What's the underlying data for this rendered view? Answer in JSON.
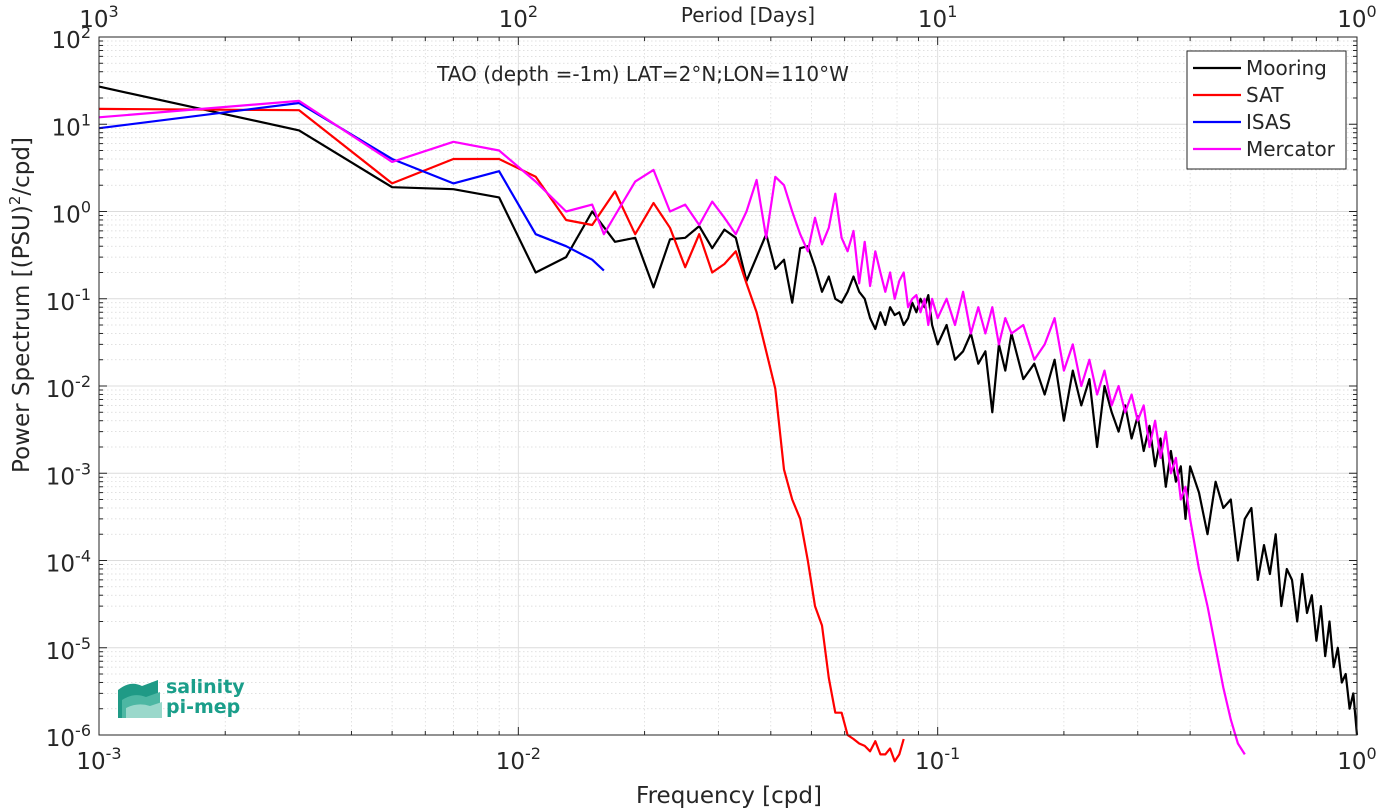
{
  "chart_data": {
    "type": "line",
    "title": "TAO (depth =-1m) LAT=2°N;LON=110°W",
    "xlabel": "Frequency [cpd]",
    "ylabel": "Power Spectrum [(PSU)",
    "ylabel_sup": "2",
    "ylabel_tail": "/cpd]",
    "x2label": "Period [Days]",
    "xscale": "log",
    "yscale": "log",
    "xlim": [
      0.001,
      1
    ],
    "ylim": [
      1e-06,
      100
    ],
    "grid": true,
    "legend_position": "top-right",
    "x_ticks": [
      {
        "base": "10",
        "exp": "-3",
        "value": 0.001
      },
      {
        "base": "10",
        "exp": "-2",
        "value": 0.01
      },
      {
        "base": "10",
        "exp": "-1",
        "value": 0.1
      },
      {
        "base": "10",
        "exp": "0",
        "value": 1
      }
    ],
    "x2_ticks": [
      {
        "base": "10",
        "exp": "3",
        "value": 0.001
      },
      {
        "base": "10",
        "exp": "2",
        "value": 0.01
      },
      {
        "base": "10",
        "exp": "1",
        "value": 0.1
      },
      {
        "base": "10",
        "exp": "0",
        "value": 1
      }
    ],
    "y_ticks": [
      {
        "base": "10",
        "exp": "2",
        "value": 100
      },
      {
        "base": "10",
        "exp": "1",
        "value": 10
      },
      {
        "base": "10",
        "exp": "0",
        "value": 1
      },
      {
        "base": "10",
        "exp": "-1",
        "value": 0.1
      },
      {
        "base": "10",
        "exp": "-2",
        "value": 0.01
      },
      {
        "base": "10",
        "exp": "-3",
        "value": 0.001
      },
      {
        "base": "10",
        "exp": "-4",
        "value": 0.0001
      },
      {
        "base": "10",
        "exp": "-5",
        "value": 1e-05
      },
      {
        "base": "10",
        "exp": "-6",
        "value": 1e-06
      }
    ],
    "series": [
      {
        "name": "Mooring",
        "color": "#000000",
        "x": [
          0.001,
          0.003,
          0.005,
          0.007,
          0.009,
          0.011,
          0.013,
          0.015,
          0.017,
          0.019,
          0.021,
          0.023,
          0.025,
          0.027,
          0.029,
          0.031,
          0.033,
          0.035,
          0.037,
          0.039,
          0.041,
          0.043,
          0.045,
          0.047,
          0.049,
          0.051,
          0.053,
          0.055,
          0.057,
          0.059,
          0.061,
          0.063,
          0.065,
          0.067,
          0.069,
          0.071,
          0.073,
          0.075,
          0.077,
          0.079,
          0.081,
          0.083,
          0.085,
          0.087,
          0.089,
          0.091,
          0.093,
          0.095,
          0.097,
          0.1,
          0.105,
          0.11,
          0.115,
          0.12,
          0.125,
          0.13,
          0.135,
          0.14,
          0.145,
          0.15,
          0.16,
          0.17,
          0.18,
          0.19,
          0.2,
          0.21,
          0.22,
          0.23,
          0.24,
          0.25,
          0.26,
          0.27,
          0.28,
          0.29,
          0.3,
          0.31,
          0.32,
          0.33,
          0.34,
          0.35,
          0.36,
          0.37,
          0.38,
          0.39,
          0.4,
          0.42,
          0.44,
          0.46,
          0.48,
          0.5,
          0.52,
          0.54,
          0.56,
          0.58,
          0.6,
          0.62,
          0.64,
          0.66,
          0.68,
          0.7,
          0.72,
          0.74,
          0.76,
          0.78,
          0.8,
          0.82,
          0.84,
          0.86,
          0.88,
          0.9,
          0.92,
          0.94,
          0.96,
          0.98,
          1.0
        ],
        "y": [
          27,
          8.5,
          1.9,
          1.8,
          1.45,
          0.2,
          0.3,
          1.0,
          0.45,
          0.5,
          0.135,
          0.48,
          0.5,
          0.68,
          0.38,
          0.62,
          0.5,
          0.16,
          0.3,
          0.55,
          0.22,
          0.28,
          0.09,
          0.38,
          0.4,
          0.23,
          0.12,
          0.18,
          0.1,
          0.09,
          0.12,
          0.18,
          0.12,
          0.1,
          0.06,
          0.045,
          0.07,
          0.05,
          0.08,
          0.065,
          0.07,
          0.05,
          0.06,
          0.09,
          0.07,
          0.1,
          0.08,
          0.11,
          0.05,
          0.03,
          0.05,
          0.02,
          0.025,
          0.04,
          0.018,
          0.025,
          0.005,
          0.03,
          0.015,
          0.04,
          0.012,
          0.018,
          0.008,
          0.02,
          0.004,
          0.015,
          0.006,
          0.012,
          0.002,
          0.01,
          0.005,
          0.003,
          0.006,
          0.0025,
          0.0045,
          0.0018,
          0.0035,
          0.0012,
          0.0025,
          0.0007,
          0.0018,
          0.0008,
          0.0012,
          0.0003,
          0.0012,
          0.0006,
          0.0002,
          0.0008,
          0.0004,
          0.0005,
          0.0001,
          0.0003,
          0.0004,
          6e-05,
          0.00015,
          7e-05,
          0.0002,
          3e-05,
          8e-05,
          6e-05,
          2e-05,
          7e-05,
          2.5e-05,
          4e-05,
          1.2e-05,
          3e-05,
          8e-06,
          2e-05,
          6e-06,
          1e-05,
          4e-06,
          5e-06,
          2e-06,
          3e-06,
          1e-06
        ]
      },
      {
        "name": "SAT",
        "color": "#ff0000",
        "x": [
          0.001,
          0.003,
          0.005,
          0.007,
          0.009,
          0.011,
          0.013,
          0.015,
          0.017,
          0.019,
          0.021,
          0.023,
          0.025,
          0.027,
          0.029,
          0.031,
          0.033,
          0.035,
          0.037,
          0.039,
          0.041,
          0.043,
          0.045,
          0.047,
          0.049,
          0.051,
          0.053,
          0.055,
          0.057,
          0.059,
          0.061,
          0.063,
          0.065,
          0.067,
          0.069,
          0.071,
          0.073,
          0.075,
          0.077,
          0.079,
          0.081,
          0.083
        ],
        "y": [
          15,
          14.5,
          2.1,
          4.0,
          4.0,
          2.5,
          0.8,
          0.7,
          1.7,
          0.55,
          1.25,
          0.65,
          0.23,
          0.55,
          0.2,
          0.25,
          0.35,
          0.15,
          0.07,
          0.025,
          0.0093,
          0.0011,
          0.0005,
          0.0003,
          0.0001,
          3e-05,
          1.8e-05,
          4.5e-06,
          1.8e-06,
          1.8e-06,
          1e-06,
          9e-07,
          8e-07,
          7.5e-07,
          6.5e-07,
          8.5e-07,
          6e-07,
          6e-07,
          7e-07,
          5e-07,
          6e-07,
          9e-07
        ]
      },
      {
        "name": "ISAS",
        "color": "#0000ff",
        "x": [
          0.001,
          0.003,
          0.005,
          0.007,
          0.009,
          0.011,
          0.013,
          0.015,
          0.016
        ],
        "y": [
          9,
          17.5,
          4.0,
          2.1,
          2.9,
          0.55,
          0.4,
          0.28,
          0.21
        ]
      },
      {
        "name": "Mercator",
        "color": "#ff00ff",
        "x": [
          0.001,
          0.003,
          0.005,
          0.007,
          0.009,
          0.011,
          0.013,
          0.015,
          0.016,
          0.017,
          0.019,
          0.021,
          0.023,
          0.025,
          0.027,
          0.029,
          0.031,
          0.033,
          0.035,
          0.037,
          0.039,
          0.041,
          0.043,
          0.045,
          0.047,
          0.049,
          0.051,
          0.053,
          0.055,
          0.057,
          0.059,
          0.061,
          0.063,
          0.065,
          0.067,
          0.069,
          0.071,
          0.073,
          0.075,
          0.077,
          0.079,
          0.081,
          0.083,
          0.085,
          0.087,
          0.089,
          0.091,
          0.093,
          0.095,
          0.097,
          0.1,
          0.105,
          0.11,
          0.115,
          0.12,
          0.125,
          0.13,
          0.135,
          0.14,
          0.145,
          0.15,
          0.16,
          0.17,
          0.18,
          0.19,
          0.2,
          0.21,
          0.22,
          0.23,
          0.24,
          0.25,
          0.26,
          0.27,
          0.28,
          0.29,
          0.3,
          0.31,
          0.32,
          0.33,
          0.34,
          0.35,
          0.36,
          0.37,
          0.38,
          0.39,
          0.4,
          0.42,
          0.44,
          0.46,
          0.48,
          0.5,
          0.52,
          0.54
        ],
        "y": [
          12,
          18.5,
          3.7,
          6.3,
          5.0,
          2.2,
          1.0,
          1.2,
          0.55,
          0.9,
          2.2,
          3.0,
          1.0,
          1.2,
          0.7,
          1.3,
          0.85,
          0.55,
          1.0,
          2.3,
          0.5,
          2.5,
          2.0,
          1.0,
          0.55,
          0.35,
          0.85,
          0.42,
          0.65,
          1.6,
          0.5,
          0.35,
          0.6,
          0.15,
          0.45,
          0.14,
          0.35,
          0.2,
          0.12,
          0.2,
          0.1,
          0.16,
          0.2,
          0.08,
          0.1,
          0.11,
          0.07,
          0.1,
          0.05,
          0.1,
          0.06,
          0.1,
          0.05,
          0.12,
          0.04,
          0.08,
          0.04,
          0.08,
          0.03,
          0.06,
          0.04,
          0.05,
          0.02,
          0.03,
          0.06,
          0.015,
          0.03,
          0.01,
          0.02,
          0.008,
          0.015,
          0.006,
          0.01,
          0.005,
          0.008,
          0.004,
          0.006,
          0.002,
          0.004,
          0.0015,
          0.003,
          0.001,
          0.0015,
          0.0005,
          0.0007,
          0.0003,
          8e-05,
          3e-05,
          1e-05,
          3.5e-06,
          1.5e-06,
          8e-07,
          6e-07
        ]
      }
    ],
    "logo": {
      "line1": "salinity",
      "line2": "pi-mep",
      "color": "#1a9e8a"
    }
  }
}
